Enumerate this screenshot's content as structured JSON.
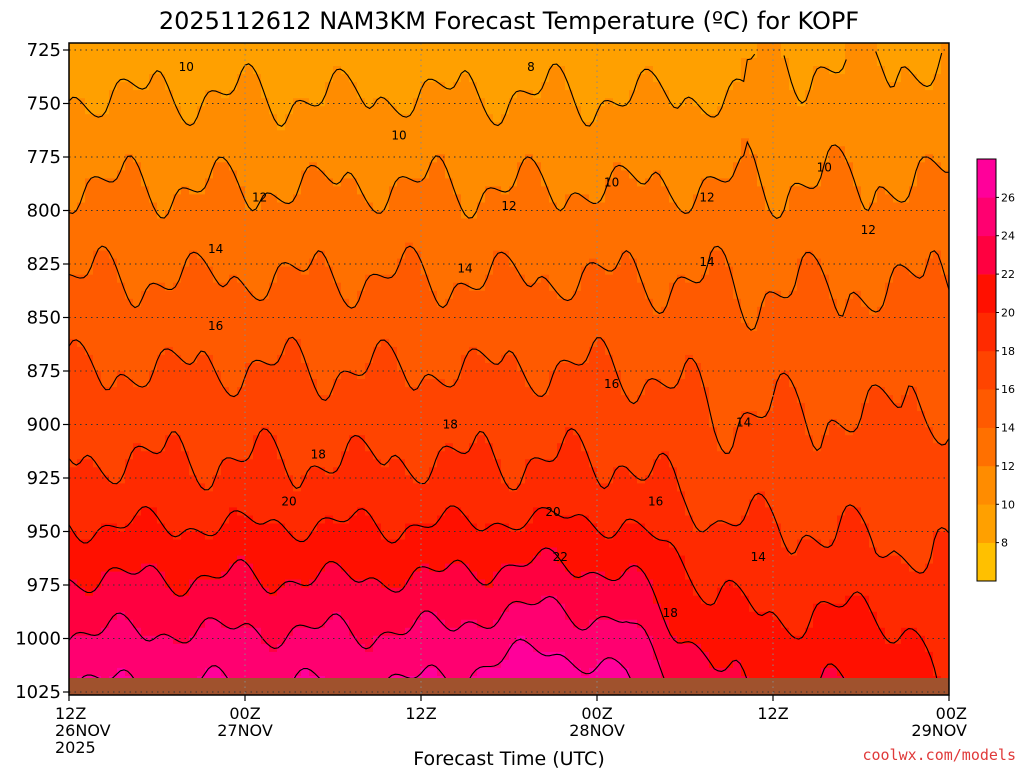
{
  "chart_data": {
    "type": "heatmap",
    "title": "2025112612 NAM3KM Forecast Temperature (ºC) for KOPF",
    "xlabel": "Forecast Time (UTC)",
    "ylabel": "",
    "credit": "coolwx.com/models",
    "y_axis": {
      "ticks": [
        725,
        750,
        775,
        800,
        825,
        850,
        875,
        900,
        925,
        950,
        975,
        1000,
        1025
      ],
      "tick_labels": [
        "725",
        "750",
        "775",
        "800",
        "825",
        "850",
        "875",
        "900",
        "925",
        "950",
        "975",
        "1000",
        "1025"
      ],
      "range": [
        725,
        1025
      ],
      "inverted": true
    },
    "x_axis": {
      "range_hours": [
        0,
        60
      ],
      "ticks": [
        {
          "hour": 0,
          "lines": [
            "12Z",
            "26NOV",
            "2025"
          ]
        },
        {
          "hour": 12,
          "lines": [
            "00Z",
            "27NOV"
          ]
        },
        {
          "hour": 24,
          "lines": [
            "12Z"
          ]
        },
        {
          "hour": 36,
          "lines": [
            "00Z",
            "28NOV"
          ]
        },
        {
          "hour": 48,
          "lines": [
            "12Z"
          ]
        },
        {
          "hour": 60,
          "lines": [
            "00Z",
            "29NOV"
          ]
        }
      ]
    },
    "grid": true,
    "levels": [
      6,
      8,
      10,
      12,
      14,
      16,
      18,
      20,
      22,
      24,
      26,
      28
    ],
    "level_colors": [
      "#ffc000",
      "#ffa000",
      "#ff8c00",
      "#ff7000",
      "#ff5a00",
      "#ff4400",
      "#ff2a00",
      "#ff1000",
      "#ff0040",
      "#ff0070",
      "#ff009a"
    ],
    "colorbar": {
      "labels": [
        "8",
        "10",
        "12",
        "14",
        "16",
        "18",
        "20",
        "22",
        "24",
        "26"
      ],
      "placement": "right"
    },
    "surface_color": "#a0522d",
    "contour_labels": [
      {
        "text": "8",
        "hour": 31.5,
        "p": 733
      },
      {
        "text": "10",
        "hour": 8.0,
        "p": 733
      },
      {
        "text": "10",
        "hour": 22.5,
        "p": 765
      },
      {
        "text": "10",
        "hour": 37.0,
        "p": 787
      },
      {
        "text": "10",
        "hour": 51.5,
        "p": 780
      },
      {
        "text": "12",
        "hour": 13.0,
        "p": 794
      },
      {
        "text": "12",
        "hour": 30.0,
        "p": 798
      },
      {
        "text": "12",
        "hour": 43.5,
        "p": 794
      },
      {
        "text": "12",
        "hour": 54.5,
        "p": 809
      },
      {
        "text": "14",
        "hour": 10.0,
        "p": 818
      },
      {
        "text": "14",
        "hour": 27.0,
        "p": 827
      },
      {
        "text": "14",
        "hour": 43.5,
        "p": 824
      },
      {
        "text": "14",
        "hour": 46.0,
        "p": 899
      },
      {
        "text": "14",
        "hour": 47.0,
        "p": 962
      },
      {
        "text": "16",
        "hour": 10.0,
        "p": 854
      },
      {
        "text": "16",
        "hour": 37.0,
        "p": 881
      },
      {
        "text": "16",
        "hour": 40.0,
        "p": 936
      },
      {
        "text": "18",
        "hour": 26.0,
        "p": 900
      },
      {
        "text": "18",
        "hour": 17.0,
        "p": 914
      },
      {
        "text": "18",
        "hour": 41.0,
        "p": 988
      },
      {
        "text": "20",
        "hour": 15.0,
        "p": 936
      },
      {
        "text": "20",
        "hour": 33.0,
        "p": 941
      },
      {
        "text": "22",
        "hour": 33.5,
        "p": 962
      }
    ]
  }
}
